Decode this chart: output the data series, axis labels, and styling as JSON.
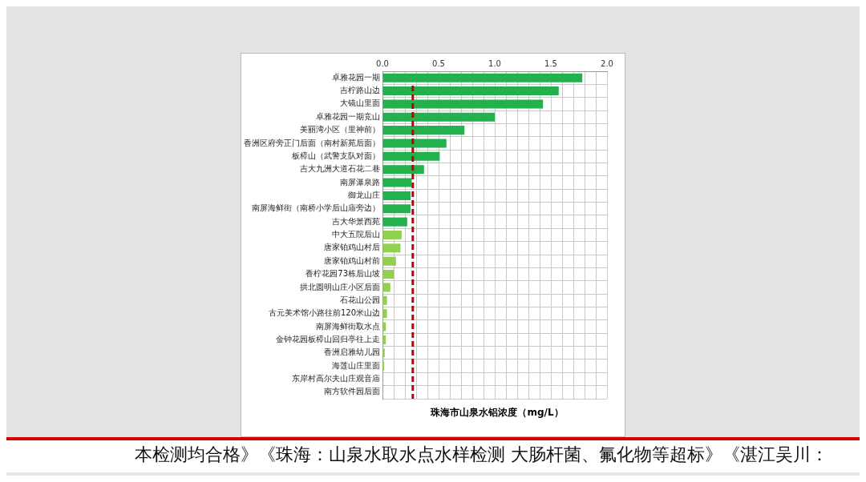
{
  "chart_data": {
    "type": "bar",
    "orientation": "horizontal",
    "xlabel": "珠海市山泉水铝浓度（mg/L）",
    "categories": [
      "卓雅花园一期",
      "吉柠路山边",
      "大镜山里面",
      "卓雅花园一期竞山",
      "美丽湾小区（里神前）",
      "香洲区府旁正门后面（南村新苑后面）",
      "板樟山（武警支队对面）",
      "吉大九洲大道石花二巷",
      "南屏瀑泉路",
      "御龙山庄",
      "南屏海鲜街（南桥小学后山庙旁边）",
      "吉大华景西苑",
      "中大五院后山",
      "唐家铂鸡山村后",
      "唐家铂鸡山村前",
      "香柠花园73栋后山坡",
      "拱北圆明山庄小区后面",
      "石花山公园",
      "古元美术馆小路往前120米山边",
      "南屏海鲜街取水点",
      "金钟花园板樟山回归亭往上走",
      "香洲启雅幼儿园",
      "海莲山庄里面",
      "东岸村高尔夫山庄观音庙",
      "南方软件园后面"
    ],
    "values": [
      1.78,
      1.57,
      1.43,
      1.0,
      0.73,
      0.57,
      0.51,
      0.37,
      0.26,
      0.25,
      0.25,
      0.22,
      0.17,
      0.16,
      0.12,
      0.1,
      0.07,
      0.04,
      0.04,
      0.03,
      0.03,
      0.02,
      0.015,
      null,
      null
    ],
    "colors": [
      "#22b14c",
      "#22b14c",
      "#22b14c",
      "#22b14c",
      "#22b14c",
      "#22b14c",
      "#22b14c",
      "#22b14c",
      "#22b14c",
      "#22b14c",
      "#22b14c",
      "#22b14c",
      "#92d050",
      "#92d050",
      "#92d050",
      "#92d050",
      "#92d050",
      "#92d050",
      "#92d050",
      "#92d050",
      "#92d050",
      "#92d050",
      "#92d050",
      "#92d050",
      "#92d050"
    ],
    "xlim": [
      0,
      2
    ],
    "xticks": [
      {
        "value": 0,
        "label": "0.0"
      },
      {
        "value": 0.1,
        "label": null
      },
      {
        "value": 0.2,
        "label": null
      },
      {
        "value": 0.3,
        "label": null
      },
      {
        "value": 0.4,
        "label": null
      },
      0.5,
      {
        "value": 0.6,
        "label": null
      },
      {
        "value": 0.7,
        "label": null
      },
      {
        "value": 0.8,
        "label": null
      },
      {
        "value": 0.9,
        "label": null
      },
      {
        "value": 1,
        "label": "1.0"
      },
      {
        "value": 1.1,
        "label": null
      },
      {
        "value": 1.2,
        "label": null
      },
      {
        "value": 1.3,
        "label": null
      },
      {
        "value": 1.4,
        "label": null
      },
      1.5,
      {
        "value": 1.6,
        "label": null
      },
      {
        "value": 1.7,
        "label": null
      },
      {
        "value": 1.8,
        "label": null
      },
      {
        "value": 1.9,
        "label": null
      },
      {
        "value": 2,
        "label": "2.0"
      }
    ],
    "grid": true,
    "legend": false,
    "ref_lines": [
      {
        "axis": "x",
        "value": 0.27,
        "color": "#c00000",
        "line_style": "dashed"
      }
    ],
    "annotations": [
      "本检测均合格》《珠海：山泉水取水点水样检测  大肠杆菌、氟化物等超标》《湛江吴川："
    ]
  }
}
